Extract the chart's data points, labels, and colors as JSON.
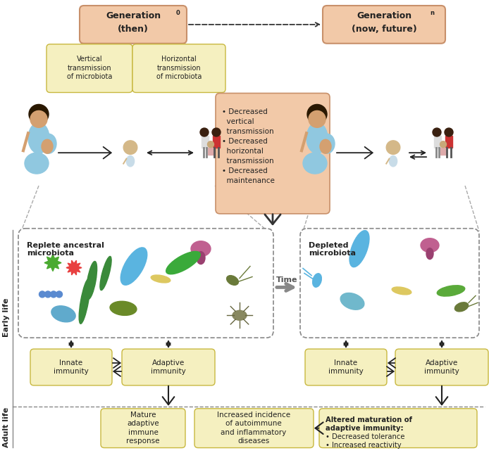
{
  "fig_width": 6.94,
  "fig_height": 6.44,
  "bg_color": "#ffffff",
  "salmon_color": "#f2c9a8",
  "salmon_edge": "#c8906a",
  "yellow_color": "#f5f0c0",
  "yellow_edge": "#c8b840",
  "dashed_edge": "#888888",
  "gen0_line1": "Generation",
  "gen0_sub": "0",
  "gen0_line2": "(then)",
  "genn_line1": "Generation",
  "genn_sub": "n",
  "genn_line2": "(now, future)",
  "box1_text": "Vertical\ntransmission\nof microbiota",
  "box2_text": "Horizontal\ntransmission\nof microbiota",
  "orange_text": "• Decreased\n  vertical\n  transmission\n• Decreased\n  horizontal\n  transmission\n• Decreased\n  maintenance",
  "replete_title": "Replete ancestral\nmicrobiota",
  "depleted_title": "Depleted\nmicrobiota",
  "time_label": "Time",
  "innate_text": "Innate\nimmunity",
  "adaptive_text": "Adaptive\nimmunity",
  "early_life_label": "Early life",
  "adult_life_label": "Adult life",
  "mature_text": "Mature\nadaptive\nimmune\nresponse",
  "increased_text": "Increased incidence\nof autoimmune\nand inflammatory\ndiseases",
  "altered_bold": "Altered maturation of\nadaptive immunity:",
  "altered_bullets": "• Decreased tolerance\n• Increased reactivity"
}
